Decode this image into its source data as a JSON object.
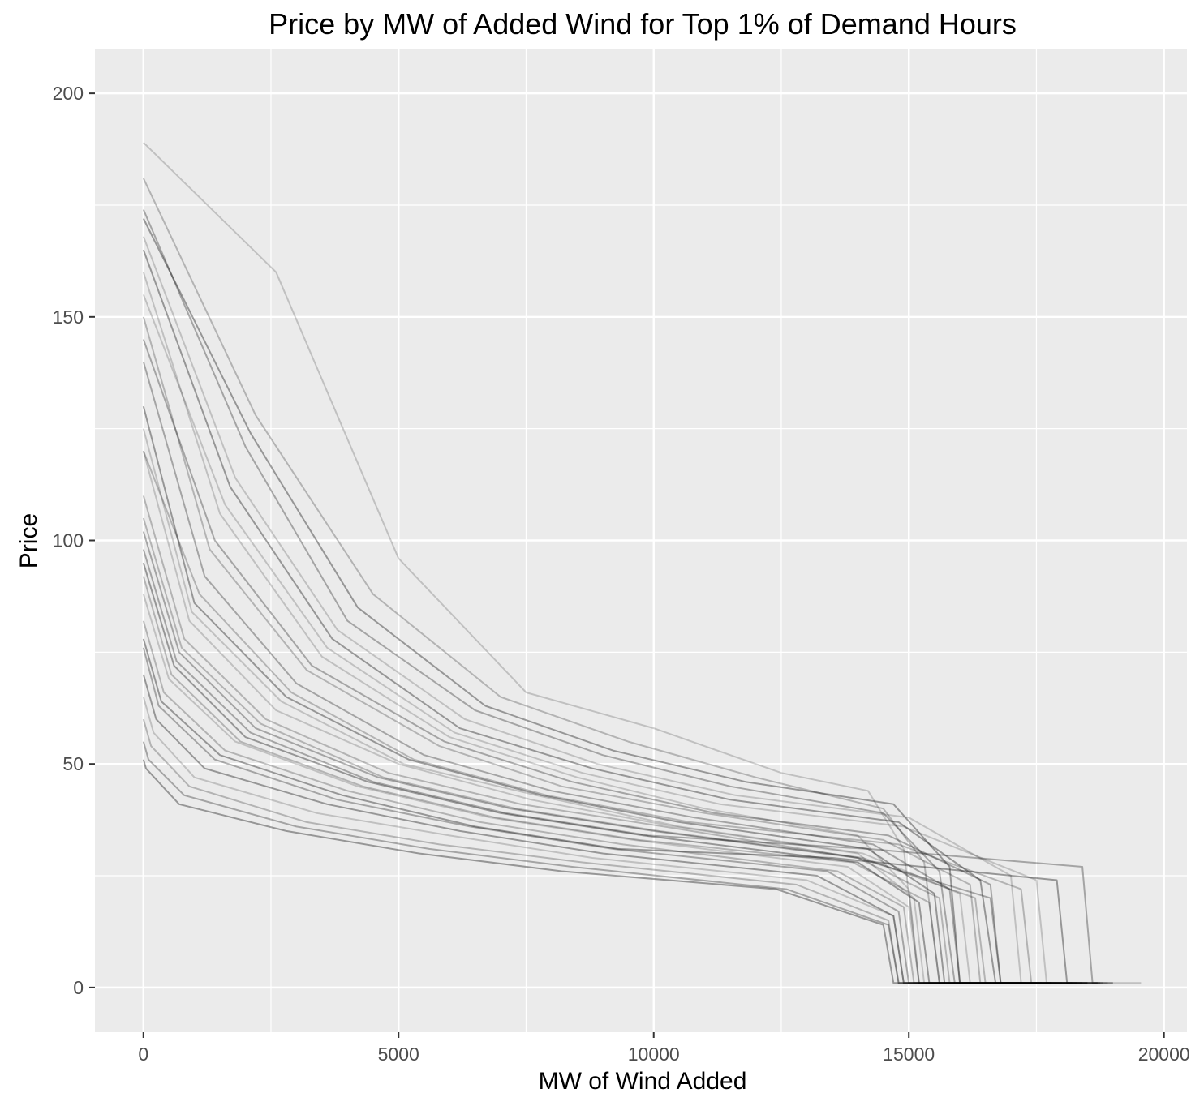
{
  "chart_data": {
    "type": "line",
    "title": "Price by MW of Added Wind for Top 1% of Demand Hours",
    "xlabel": "MW of Wind Added",
    "ylabel": "Price",
    "xlim": [
      -950,
      20450
    ],
    "ylim": [
      -10,
      210
    ],
    "x_ticks": [
      0,
      5000,
      10000,
      15000,
      20000
    ],
    "x_tick_labels": [
      "0",
      "5000",
      "10000",
      "15000",
      "20000"
    ],
    "y_ticks": [
      0,
      50,
      100,
      150,
      200
    ],
    "y_tick_labels": [
      "0",
      "50",
      "100",
      "150",
      "200"
    ],
    "x_minor": [
      2500,
      7500,
      12500,
      17500
    ],
    "y_minor": [
      25,
      75,
      125,
      175
    ],
    "grid": true,
    "legend": "none",
    "line_color": "#000000",
    "line_alpha": 0.18,
    "panel_background": "#ebebeb",
    "grid_color": "#ffffff",
    "series": [
      {
        "x": [
          0,
          2600,
          5000,
          7500,
          10000,
          12500,
          14200,
          14900,
          15200,
          19550
        ],
        "y": [
          189,
          160,
          96,
          66,
          58,
          48,
          44,
          31,
          1,
          1
        ]
      },
      {
        "x": [
          0,
          2200,
          4500,
          7000,
          9500,
          12000,
          14500,
          15300,
          15600,
          18800
        ],
        "y": [
          181,
          128,
          88,
          65,
          55,
          47,
          40,
          28,
          1,
          1
        ]
      },
      {
        "x": [
          0,
          2000,
          4000,
          6500,
          9000,
          11500,
          14500,
          15600,
          15900,
          18500
        ],
        "y": [
          174,
          121,
          82,
          62,
          52,
          45,
          39,
          26,
          1,
          1
        ]
      },
      {
        "x": [
          0,
          1700,
          3700,
          6200,
          8800,
          11500,
          14800,
          16400,
          16700,
          18400
        ],
        "y": [
          165,
          112,
          78,
          58,
          49,
          42,
          37,
          24,
          1,
          1
        ]
      },
      {
        "x": [
          0,
          1500,
          3500,
          6000,
          8500,
          11000,
          14000,
          15000,
          15200,
          17900
        ],
        "y": [
          160,
          106,
          74,
          56,
          47,
          40,
          34,
          22,
          1,
          1
        ]
      },
      {
        "x": [
          0,
          1300,
          3200,
          5800,
          8200,
          11000,
          14500,
          16200,
          16400,
          18000
        ],
        "y": [
          150,
          98,
          71,
          54,
          45,
          39,
          33,
          23,
          1,
          1
        ]
      },
      {
        "x": [
          0,
          1200,
          3000,
          5500,
          8000,
          10800,
          14300,
          15800,
          16000,
          17800
        ],
        "y": [
          140,
          92,
          68,
          52,
          44,
          38,
          32,
          22,
          1,
          1
        ]
      },
      {
        "x": [
          0,
          1000,
          2800,
          5200,
          7800,
          10500,
          14200,
          15500,
          15700,
          17600
        ],
        "y": [
          130,
          86,
          65,
          51,
          43,
          37,
          31,
          21,
          1,
          1
        ]
      },
      {
        "x": [
          0,
          900,
          2600,
          5000,
          7600,
          10400,
          14000,
          15100,
          15300,
          17400
        ],
        "y": [
          120,
          82,
          62,
          50,
          42,
          36,
          30,
          20,
          1,
          1
        ]
      },
      {
        "x": [
          0,
          800,
          2400,
          4800,
          7400,
          10200,
          14000,
          15600,
          15800,
          17300
        ],
        "y": [
          110,
          78,
          60,
          48,
          41,
          36,
          29,
          20,
          1,
          1
        ]
      },
      {
        "x": [
          0,
          700,
          2200,
          4600,
          7200,
          10000,
          14000,
          16600,
          16800,
          18200
        ],
        "y": [
          102,
          75,
          58,
          47,
          40,
          35,
          29,
          20,
          1,
          1
        ]
      },
      {
        "x": [
          0,
          600,
          2000,
          4400,
          7000,
          9800,
          14000,
          15200,
          15400,
          17200
        ],
        "y": [
          95,
          72,
          56,
          46,
          39,
          34,
          28,
          19,
          1,
          1
        ]
      },
      {
        "x": [
          0,
          500,
          1800,
          4200,
          6800,
          9600,
          13800,
          15000,
          15200,
          16800
        ],
        "y": [
          88,
          69,
          55,
          45,
          38,
          33,
          27,
          18,
          1,
          1
        ]
      },
      {
        "x": [
          0,
          400,
          1600,
          4000,
          6600,
          9400,
          13600,
          14900,
          15100,
          16600
        ],
        "y": [
          82,
          66,
          53,
          44,
          37,
          32,
          26,
          18,
          1,
          1
        ]
      },
      {
        "x": [
          0,
          300,
          1400,
          3800,
          6400,
          9200,
          13400,
          14800,
          15000,
          16400
        ],
        "y": [
          76,
          63,
          51,
          42,
          36,
          31,
          26,
          17,
          1,
          1
        ]
      },
      {
        "x": [
          0,
          250,
          1200,
          3600,
          6200,
          9000,
          13200,
          14700,
          14900,
          16200
        ],
        "y": [
          70,
          60,
          49,
          41,
          35,
          30,
          25,
          16,
          1,
          1
        ]
      },
      {
        "x": [
          0,
          200,
          1000,
          3400,
          6000,
          8800,
          13000,
          14700,
          14900,
          16000
        ],
        "y": [
          65,
          57,
          47,
          39,
          34,
          29,
          24,
          16,
          1,
          1
        ]
      },
      {
        "x": [
          0,
          150,
          900,
          3200,
          5800,
          8600,
          12800,
          14600,
          14800,
          15900
        ],
        "y": [
          60,
          54,
          45,
          37,
          32,
          28,
          23,
          15,
          1,
          1
        ]
      },
      {
        "x": [
          0,
          100,
          800,
          3000,
          5600,
          8400,
          12600,
          14600,
          14800,
          15800
        ],
        "y": [
          55,
          51,
          43,
          36,
          31,
          27,
          22,
          14,
          1,
          1
        ]
      },
      {
        "x": [
          0,
          50,
          700,
          2800,
          5400,
          8200,
          12400,
          14500,
          14700,
          15700
        ],
        "y": [
          51,
          49,
          41,
          35,
          30,
          26,
          22,
          14,
          1,
          1
        ]
      },
      {
        "x": [
          0,
          1800,
          3800,
          6300,
          8900,
          11600,
          15000,
          17000,
          17200,
          18700
        ],
        "y": [
          168,
          114,
          80,
          60,
          50,
          43,
          38,
          25,
          1,
          1
        ]
      },
      {
        "x": [
          0,
          1100,
          2900,
          5300,
          7900,
          10700,
          14800,
          17200,
          17400,
          18700
        ],
        "y": [
          120,
          88,
          66,
          51,
          43,
          37,
          32,
          22,
          1,
          1
        ]
      },
      {
        "x": [
          0,
          650,
          2100,
          4500,
          7100,
          9900,
          14200,
          18400,
          18600,
          18750
        ],
        "y": [
          98,
          73,
          57,
          46,
          39,
          34,
          31,
          27,
          1,
          1
        ]
      },
      {
        "x": [
          0,
          350,
          1500,
          3900,
          6500,
          9300,
          13500,
          17900,
          18100,
          18500
        ],
        "y": [
          78,
          64,
          52,
          43,
          36,
          31,
          29,
          24,
          1,
          1
        ]
      },
      {
        "x": [
          0,
          950,
          2700,
          5100,
          7700,
          10500,
          14100,
          16000,
          16200,
          17500
        ],
        "y": [
          125,
          84,
          64,
          50,
          43,
          36,
          30,
          21,
          1,
          1
        ]
      },
      {
        "x": [
          0,
          550,
          1900,
          4300,
          6900,
          9700,
          13900,
          15400,
          15600,
          17000
        ],
        "y": [
          92,
          70,
          55,
          45,
          38,
          33,
          28,
          19,
          1,
          1
        ]
      },
      {
        "x": [
          0,
          1400,
          3300,
          5900,
          8400,
          11200,
          14600,
          16600,
          16800,
          18300
        ],
        "y": [
          145,
          100,
          72,
          55,
          46,
          39,
          34,
          23,
          1,
          1
        ]
      },
      {
        "x": [
          0,
          2100,
          4200,
          6700,
          9200,
          11800,
          14700,
          15800,
          16000,
          19000
        ],
        "y": [
          172,
          124,
          85,
          63,
          53,
          46,
          41,
          27,
          1,
          1
        ]
      },
      {
        "x": [
          0,
          1600,
          3600,
          6100,
          8600,
          11300,
          14900,
          17500,
          17700,
          18900
        ],
        "y": [
          155,
          108,
          76,
          57,
          48,
          41,
          36,
          24,
          1,
          1
        ]
      },
      {
        "x": [
          0,
          750,
          2300,
          4700,
          7300,
          10100,
          14100,
          16300,
          16500,
          17800
        ],
        "y": [
          105,
          76,
          59,
          47,
          40,
          35,
          29,
          20,
          1,
          1
        ]
      }
    ]
  }
}
